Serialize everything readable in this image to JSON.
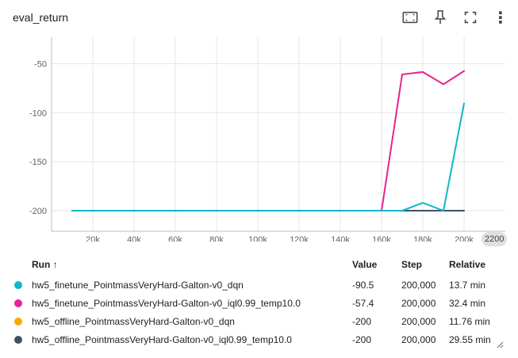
{
  "title": "eval_return",
  "toolbar": {
    "icons": [
      "fit-domain-icon",
      "pin-icon",
      "fullscreen-icon",
      "more-vert-icon"
    ],
    "more_glyph": "⋮"
  },
  "chart_data": {
    "type": "line",
    "title": "eval_return",
    "xlim": [
      0,
      220000
    ],
    "ylim": [
      -221,
      -23
    ],
    "x_ticks": [
      20000,
      40000,
      60000,
      80000,
      100000,
      120000,
      140000,
      160000,
      180000,
      200000
    ],
    "x_tick_labels": [
      "20k",
      "40k",
      "60k",
      "80k",
      "100k",
      "120k",
      "140k",
      "160k",
      "180k",
      "200k"
    ],
    "x_overflow_label": "2200",
    "y_ticks": [
      -50,
      -100,
      -150,
      -200
    ],
    "y_tick_labels": [
      "-50",
      "-100",
      "-150",
      "-200"
    ],
    "grid": true,
    "series": [
      {
        "name": "hw5_offline_PointmassVeryHard-Galton-v0_dqn",
        "color": "#f9ab00",
        "x": [
          10000,
          20000,
          40000,
          60000,
          80000,
          100000,
          120000,
          140000,
          160000,
          170000,
          180000,
          190000,
          200000
        ],
        "y": [
          -200,
          -200,
          -200,
          -200,
          -200,
          -200,
          -200,
          -200,
          -200,
          -200,
          -200,
          -200,
          -200
        ]
      },
      {
        "name": "hw5_offline_PointmassVeryHard-Galton-v0_iql0.99_temp10.0",
        "color": "#425066",
        "x": [
          10000,
          20000,
          40000,
          60000,
          80000,
          100000,
          120000,
          140000,
          160000,
          170000,
          180000,
          190000,
          200000
        ],
        "y": [
          -200,
          -200,
          -200,
          -200,
          -200,
          -200,
          -200,
          -200,
          -200,
          -200,
          -200,
          -200,
          -200
        ]
      },
      {
        "name": "hw5_finetune_PointmassVeryHard-Galton-v0_iql0.99_temp10.0",
        "color": "#e52592",
        "x": [
          10000,
          20000,
          40000,
          60000,
          80000,
          100000,
          120000,
          140000,
          160000,
          170000,
          180000,
          190000,
          200000
        ],
        "y": [
          -200,
          -200,
          -200,
          -200,
          -200,
          -200,
          -200,
          -200,
          -200,
          -61,
          -58.5,
          -71,
          -57.4
        ]
      },
      {
        "name": "hw5_finetune_PointmassVeryHard-Galton-v0_dqn",
        "color": "#12b5cb",
        "x": [
          10000,
          20000,
          40000,
          60000,
          80000,
          100000,
          120000,
          140000,
          160000,
          170000,
          180000,
          190000,
          200000
        ],
        "y": [
          -200,
          -200,
          -200,
          -200,
          -200,
          -200,
          -200,
          -200,
          -200,
          -200,
          -192,
          -200,
          -90.5
        ]
      }
    ]
  },
  "table": {
    "headers": {
      "run": "Run ↑",
      "value": "Value",
      "step": "Step",
      "relative": "Relative"
    },
    "rows": [
      {
        "color": "#12b5cb",
        "run": "hw5_finetune_PointmassVeryHard-Galton-v0_dqn",
        "value": "-90.5",
        "step": "200,000",
        "relative": "13.7 min"
      },
      {
        "color": "#e52592",
        "run": "hw5_finetune_PointmassVeryHard-Galton-v0_iql0.99_temp10.0",
        "value": "-57.4",
        "step": "200,000",
        "relative": "32.4 min"
      },
      {
        "color": "#f9ab00",
        "run": "hw5_offline_PointmassVeryHard-Galton-v0_dqn",
        "value": "-200",
        "step": "200,000",
        "relative": "11.76 min"
      },
      {
        "color": "#425066",
        "run": "hw5_offline_PointmassVeryHard-Galton-v0_iql0.99_temp10.0",
        "value": "-200",
        "step": "200,000",
        "relative": "29.55 min"
      }
    ]
  }
}
